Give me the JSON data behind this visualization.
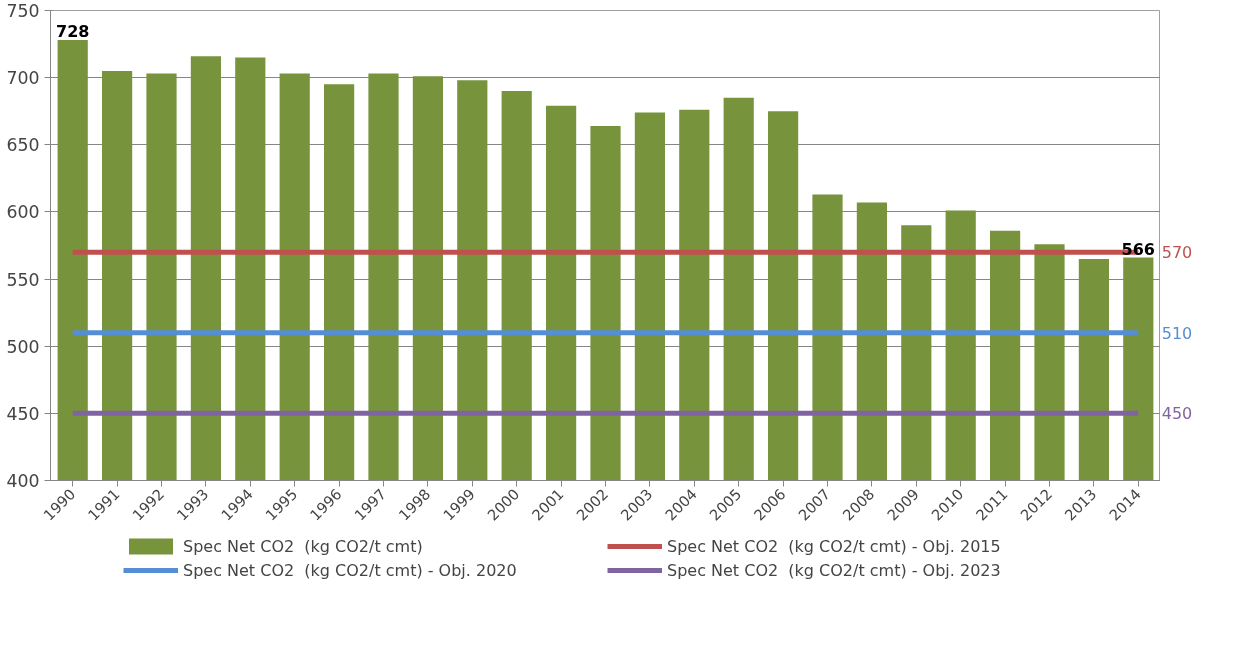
{
  "chart_data": {
    "type": "bar",
    "categories": [
      "1990",
      "1991",
      "1992",
      "1993",
      "1994",
      "1995",
      "1996",
      "1997",
      "1998",
      "1999",
      "2000",
      "2001",
      "2002",
      "2003",
      "2004",
      "2005",
      "2006",
      "2007",
      "2008",
      "2009",
      "2010",
      "2011",
      "2012",
      "2013",
      "2014"
    ],
    "series": [
      {
        "name": "Spec Net CO2  (kg CO2/t cmt)",
        "color": "#77933c",
        "values": [
          728,
          705,
          703,
          716,
          715,
          703,
          695,
          703,
          701,
          698,
          690,
          679,
          664,
          674,
          676,
          685,
          675,
          613,
          607,
          590,
          601,
          586,
          576,
          565,
          566
        ],
        "value_labels": [
          "728",
          null,
          null,
          null,
          null,
          null,
          null,
          null,
          null,
          null,
          null,
          null,
          null,
          null,
          null,
          null,
          null,
          null,
          null,
          null,
          null,
          null,
          null,
          null,
          "566"
        ]
      },
      {
        "name": "Spec Net CO2  (kg CO2/t cmt) - Obj. 2015",
        "type": "line",
        "color": "#c0504d",
        "values": [
          570,
          570,
          570,
          570,
          570,
          570,
          570,
          570,
          570,
          570,
          570,
          570,
          570,
          570,
          570,
          570,
          570,
          570,
          570,
          570,
          570,
          570,
          570,
          570,
          570
        ],
        "value_labels": [
          null,
          null,
          null,
          null,
          null,
          null,
          null,
          null,
          null,
          null,
          null,
          null,
          null,
          null,
          null,
          null,
          null,
          null,
          null,
          null,
          null,
          null,
          null,
          null,
          "570"
        ]
      },
      {
        "name": "Spec Net CO2  (kg CO2/t cmt) - Obj. 2020",
        "type": "line",
        "color": "#558ed5",
        "values": [
          510,
          510,
          510,
          510,
          510,
          510,
          510,
          510,
          510,
          510,
          510,
          510,
          510,
          510,
          510,
          510,
          510,
          510,
          510,
          510,
          510,
          510,
          510,
          510,
          510
        ],
        "value_labels": [
          null,
          null,
          null,
          null,
          null,
          null,
          null,
          null,
          null,
          null,
          null,
          null,
          null,
          null,
          null,
          null,
          null,
          null,
          null,
          null,
          null,
          null,
          null,
          null,
          "510"
        ]
      },
      {
        "name": "Spec Net CO2  (kg CO2/t cmt) - Obj. 2023",
        "type": "line",
        "color": "#8064a2",
        "values": [
          450,
          450,
          450,
          450,
          450,
          450,
          450,
          450,
          450,
          450,
          450,
          450,
          450,
          450,
          450,
          450,
          450,
          450,
          450,
          450,
          450,
          450,
          450,
          450,
          450
        ],
        "value_labels": [
          null,
          null,
          null,
          null,
          null,
          null,
          null,
          null,
          null,
          null,
          null,
          null,
          null,
          null,
          null,
          null,
          null,
          null,
          null,
          null,
          null,
          null,
          null,
          null,
          "450"
        ]
      }
    ],
    "ylim": [
      400,
      750
    ],
    "yticks": [
      400,
      450,
      500,
      550,
      600,
      650,
      700,
      750
    ],
    "grid": "y",
    "legend": "bottom"
  }
}
